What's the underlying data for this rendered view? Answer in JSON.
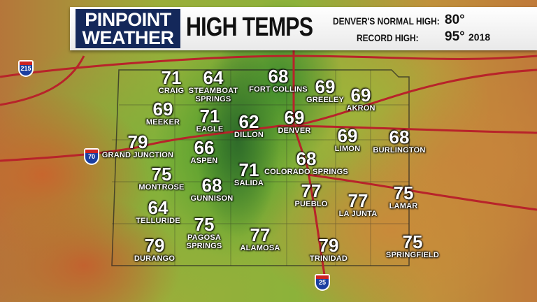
{
  "header": {
    "logo_line1": "PINPOINT",
    "logo_line2": "WEATHER",
    "title": "HIGH TEMPS",
    "normal_label": "DENVER'S NORMAL HIGH:",
    "normal_value": "80°",
    "record_label": "RECORD HIGH:",
    "record_value": "95°",
    "record_year": "2018"
  },
  "cities": [
    {
      "name": "CRAIG",
      "temp": "71"
    },
    {
      "name": "STEAMBOAT SPRINGS",
      "temp": "64"
    },
    {
      "name": "FORT COLLINS",
      "temp": "68"
    },
    {
      "name": "GREELEY",
      "temp": "69"
    },
    {
      "name": "AKRON",
      "temp": "69"
    },
    {
      "name": "MEEKER",
      "temp": "69"
    },
    {
      "name": "EAGLE",
      "temp": "71"
    },
    {
      "name": "DILLON",
      "temp": "62"
    },
    {
      "name": "DENVER",
      "temp": "69"
    },
    {
      "name": "LIMON",
      "temp": "69"
    },
    {
      "name": "BURLINGTON",
      "temp": "68"
    },
    {
      "name": "GRAND JUNCTION",
      "temp": "79"
    },
    {
      "name": "ASPEN",
      "temp": "66"
    },
    {
      "name": "COLORADO SPRINGS",
      "temp": "68"
    },
    {
      "name": "SALIDA",
      "temp": "71"
    },
    {
      "name": "MONTROSE",
      "temp": "75"
    },
    {
      "name": "GUNNISON",
      "temp": "68"
    },
    {
      "name": "PUEBLO",
      "temp": "77"
    },
    {
      "name": "LA JUNTA",
      "temp": "77"
    },
    {
      "name": "LAMAR",
      "temp": "75"
    },
    {
      "name": "TELLURIDE",
      "temp": "64"
    },
    {
      "name": "PAGOSA SPRINGS",
      "temp": "75"
    },
    {
      "name": "ALAMOSA",
      "temp": "77"
    },
    {
      "name": "TRINIDAD",
      "temp": "79"
    },
    {
      "name": "SPRINGFIELD",
      "temp": "75"
    },
    {
      "name": "DURANGO",
      "temp": "79"
    }
  ],
  "interstates": [
    "215",
    "70",
    "25"
  ],
  "colors": {
    "logo_bg": "#14285a",
    "highway": "#b8232a",
    "interstate_shield": "#1b3fa0"
  }
}
